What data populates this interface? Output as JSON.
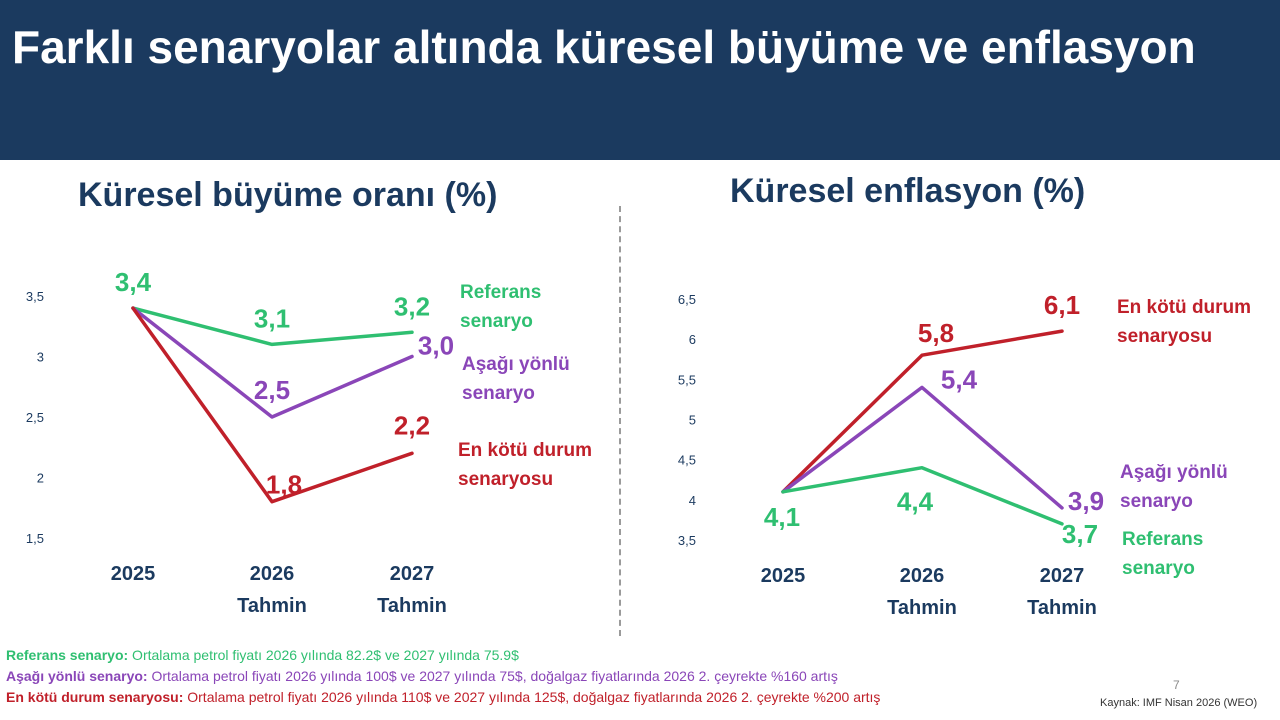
{
  "title": "Farklı senaryolar altında küresel büyüme ve enflasyon",
  "colors": {
    "header_bg": "#1b3a5f",
    "heading": "#1b3a5f",
    "reference": "#2fbf71",
    "downside": "#8a46b8",
    "worst": "#c0202a",
    "axis_text": "#1b3a5f"
  },
  "chart_data": [
    {
      "type": "line",
      "title": "Küresel büyüme oranı (%)",
      "categories": [
        [
          "2025"
        ],
        [
          "2026",
          "Tahmin"
        ],
        [
          "2027",
          "Tahmin"
        ]
      ],
      "ylim": [
        1.5,
        3.5
      ],
      "yticks": [
        "1,5",
        "2",
        "2,5",
        "3",
        "3,5"
      ],
      "grid": false,
      "series": [
        {
          "key": "reference",
          "name_lines": [
            "Referans",
            "senaryo"
          ],
          "values": [
            3.4,
            3.1,
            3.2
          ],
          "labels": [
            "3,4",
            "3,1",
            "3,2"
          ]
        },
        {
          "key": "downside",
          "name_lines": [
            "Aşağı yönlü",
            "senaryo"
          ],
          "values": [
            3.4,
            2.5,
            3.0
          ],
          "labels": [
            "",
            "2,5",
            "3,0"
          ]
        },
        {
          "key": "worst",
          "name_lines": [
            "En kötü durum",
            "senaryosu"
          ],
          "values": [
            3.4,
            1.8,
            2.2
          ],
          "labels": [
            "",
            "1,8",
            "2,2"
          ]
        }
      ]
    },
    {
      "type": "line",
      "title": "Küresel enflasyon (%)",
      "categories": [
        [
          "2025"
        ],
        [
          "2026",
          "Tahmin"
        ],
        [
          "2027",
          "Tahmin"
        ]
      ],
      "ylim": [
        3.5,
        6.5
      ],
      "yticks": [
        "3,5",
        "4",
        "4,5",
        "5",
        "5,5",
        "6",
        "6,5"
      ],
      "grid": false,
      "series": [
        {
          "key": "worst",
          "name_lines": [
            "En kötü durum",
            "senaryosu"
          ],
          "values": [
            4.1,
            5.8,
            6.1
          ],
          "labels": [
            "",
            "5,8",
            "6,1"
          ]
        },
        {
          "key": "downside",
          "name_lines": [
            "Aşağı yönlü",
            "senaryo"
          ],
          "values": [
            4.1,
            5.4,
            3.9
          ],
          "labels": [
            "",
            "5,4",
            "3,9"
          ]
        },
        {
          "key": "reference",
          "name_lines": [
            "Referans",
            "senaryo"
          ],
          "values": [
            4.1,
            4.4,
            3.7
          ],
          "labels": [
            "4,1",
            "4,4",
            "3,7"
          ]
        }
      ]
    }
  ],
  "footnotes": [
    {
      "key": "reference",
      "name": "Referans senaryo:",
      "text": " Ortalama petrol fiyatı 2026 yılında 82.2$ ve 2027 yılında 75.9$"
    },
    {
      "key": "downside",
      "name": "Aşağı yönlü senaryo:",
      "text": " Ortalama petrol fiyatı 2026 yılında 100$ ve 2027 yılında 75$, doğalgaz fiyatlarında 2026 2. çeyrekte %160 artış"
    },
    {
      "key": "worst",
      "name": "En kötü durum senaryosu:",
      "text": " Ortalama petrol fiyatı 2026 yılında 110$ ve 2027 yılında 125$, doğalgaz fiyatlarında 2026 2. çeyrekte %200 artış"
    }
  ],
  "page_number": "7",
  "source": "Kaynak: IMF Nisan 2026 (WEO)"
}
